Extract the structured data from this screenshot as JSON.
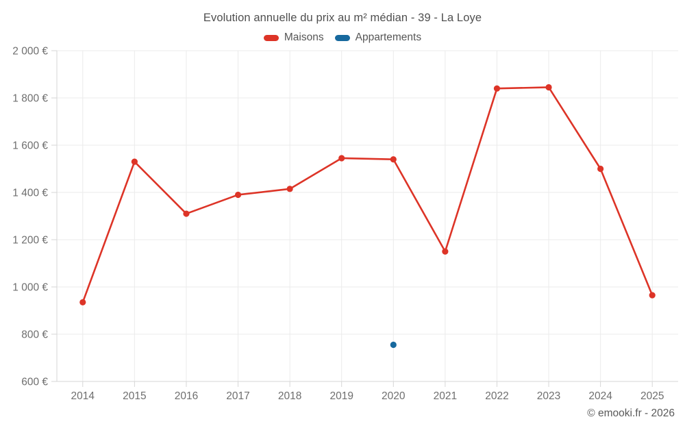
{
  "header": {
    "title": "Evolution annuelle du prix au m² médian - 39 - La Loye"
  },
  "legend": {
    "items": [
      {
        "label": "Maisons",
        "color": "#dd3427"
      },
      {
        "label": "Appartements",
        "color": "#17699e"
      }
    ]
  },
  "footer": {
    "attribution": "© emooki.fr - 2026"
  },
  "colors": {
    "maisons": "#dd3427",
    "appartements": "#17699e",
    "gridline": "#ebebeb",
    "axis_line": "#d6d6d6",
    "tick_label": "#6e6e6e"
  },
  "chart_data": {
    "type": "line",
    "title": "Evolution annuelle du prix au m² médian - 39 - La Loye",
    "categories": [
      "2014",
      "2015",
      "2016",
      "2017",
      "2018",
      "2019",
      "2020",
      "2021",
      "2022",
      "2023",
      "2024",
      "2025"
    ],
    "series": [
      {
        "name": "Maisons",
        "color": "#dd3427",
        "values": [
          935,
          1530,
          1310,
          1390,
          1415,
          1545,
          1540,
          1150,
          1840,
          1845,
          1500,
          965
        ]
      },
      {
        "name": "Appartements",
        "color": "#17699e",
        "values": [
          null,
          null,
          null,
          null,
          null,
          null,
          755,
          null,
          null,
          null,
          null,
          null
        ]
      }
    ],
    "xlabel": "",
    "ylabel": "",
    "ylim": [
      600,
      2000
    ],
    "ytick_step": 200,
    "ytick_labels": [
      "600 €",
      "800 €",
      "1 000 €",
      "1 200 €",
      "1 400 €",
      "1 600 €",
      "1 800 €",
      "2 000 €"
    ],
    "grid": true,
    "legend_position": "top"
  }
}
